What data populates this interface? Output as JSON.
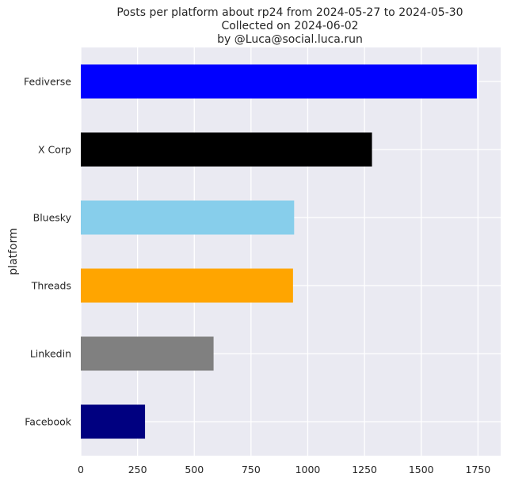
{
  "chart_data": {
    "type": "bar",
    "orientation": "horizontal",
    "title_lines": [
      "Posts per platform about rp24 from 2024-05-27 to 2024-05-30",
      "Collected on 2024-06-02",
      "by @Luca@social.luca.run"
    ],
    "xlabel": "",
    "ylabel": "platform",
    "xlim": [
      0,
      1850
    ],
    "xticks": [
      0,
      250,
      500,
      750,
      1000,
      1250,
      1500,
      1750
    ],
    "xtick_labels": [
      "0",
      "250",
      "500",
      "750",
      "1000",
      "1250",
      "1500",
      "1750"
    ],
    "grid": true,
    "categories": [
      "Fediverse",
      "X Corp",
      "Bluesky",
      "Threads",
      "Linkedin",
      "Facebook"
    ],
    "values": [
      1745,
      1283,
      940,
      935,
      585,
      283
    ],
    "colors": [
      "#0000ff",
      "#000000",
      "#87ceeb",
      "#ffa500",
      "#808080",
      "#000080"
    ],
    "background": "#eaeaf2"
  }
}
